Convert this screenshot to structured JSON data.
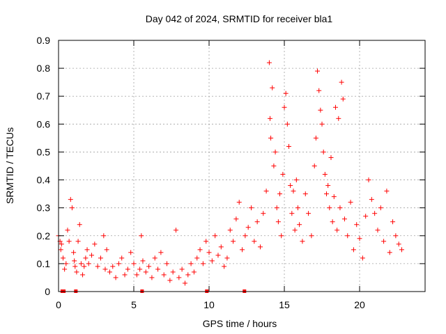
{
  "chart_data": {
    "type": "scatter",
    "title": "Day 042 of 2024, SRMTID for receiver bla1",
    "xlabel": "GPS time / hours",
    "ylabel": "SRMTID / TECUs",
    "xlim": [
      0,
      24.35
    ],
    "ylim": [
      0,
      0.9
    ],
    "xticks": [
      0,
      5,
      10,
      15,
      20
    ],
    "xtick_labels": [
      "0",
      "5",
      "10",
      "15",
      "20"
    ],
    "yticks": [
      0,
      0.1,
      0.2,
      0.3,
      0.4,
      0.5,
      0.6,
      0.7,
      0.8,
      0.9
    ],
    "ytick_labels": [
      "0",
      "0.1",
      "0.2",
      "0.3",
      "0.4",
      "0.5",
      "0.6",
      "0.7",
      "0.8",
      "0.9"
    ],
    "grid": true,
    "marker": "plus",
    "color": "#ff0000",
    "series": [
      {
        "name": "bla1",
        "x": [
          0.0,
          0.1,
          0.15,
          0.2,
          0.3,
          0.4,
          0.5,
          0.6,
          0.7,
          0.8,
          0.9,
          1.0,
          1.05,
          1.1,
          1.2,
          1.3,
          1.4,
          1.5,
          1.6,
          1.7,
          1.8,
          1.9,
          2.0,
          2.2,
          2.4,
          2.6,
          2.8,
          3.0,
          3.1,
          3.2,
          3.4,
          3.6,
          3.8,
          4.0,
          4.2,
          4.4,
          4.6,
          4.8,
          5.0,
          5.2,
          5.4,
          5.5,
          5.6,
          5.8,
          6.0,
          6.2,
          6.4,
          6.6,
          6.8,
          7.0,
          7.2,
          7.4,
          7.6,
          7.8,
          8.0,
          8.2,
          8.4,
          8.6,
          8.8,
          9.0,
          9.2,
          9.4,
          9.6,
          9.8,
          10.0,
          10.2,
          10.4,
          10.6,
          10.8,
          11.0,
          11.2,
          11.4,
          11.6,
          11.8,
          12.0,
          12.2,
          12.4,
          12.6,
          12.8,
          13.0,
          13.2,
          13.4,
          13.6,
          13.8,
          14.0,
          14.05,
          14.1,
          14.2,
          14.3,
          14.4,
          14.5,
          14.6,
          14.7,
          14.8,
          14.9,
          15.0,
          15.1,
          15.2,
          15.3,
          15.4,
          15.5,
          15.6,
          15.7,
          15.8,
          15.9,
          16.0,
          16.2,
          16.4,
          16.6,
          16.8,
          17.0,
          17.1,
          17.2,
          17.3,
          17.4,
          17.5,
          17.6,
          17.7,
          17.8,
          17.9,
          18.0,
          18.1,
          18.2,
          18.3,
          18.4,
          18.5,
          18.6,
          18.7,
          18.8,
          18.9,
          19.0,
          19.2,
          19.4,
          19.6,
          19.8,
          20.0,
          20.2,
          20.4,
          20.6,
          20.8,
          21.0,
          21.2,
          21.4,
          21.6,
          21.8,
          22.0,
          22.2,
          22.4,
          22.6,
          22.8,
          0.25,
          0.35,
          1.15,
          5.55,
          9.85,
          12.35
        ],
        "y": [
          0.2,
          0.18,
          0.15,
          0.17,
          0.12,
          0.08,
          0.1,
          0.22,
          0.18,
          0.33,
          0.3,
          0.14,
          0.11,
          0.09,
          0.07,
          0.18,
          0.24,
          0.1,
          0.06,
          0.09,
          0.12,
          0.15,
          0.1,
          0.13,
          0.17,
          0.09,
          0.12,
          0.2,
          0.08,
          0.15,
          0.07,
          0.09,
          0.05,
          0.1,
          0.12,
          0.06,
          0.08,
          0.14,
          0.1,
          0.06,
          0.08,
          0.2,
          0.11,
          0.07,
          0.09,
          0.05,
          0.12,
          0.08,
          0.14,
          0.06,
          0.1,
          0.04,
          0.07,
          0.22,
          0.05,
          0.08,
          0.03,
          0.06,
          0.1,
          0.07,
          0.12,
          0.15,
          0.1,
          0.18,
          0.14,
          0.11,
          0.2,
          0.13,
          0.16,
          0.09,
          0.12,
          0.22,
          0.18,
          0.26,
          0.32,
          0.15,
          0.2,
          0.23,
          0.3,
          0.18,
          0.25,
          0.16,
          0.28,
          0.36,
          0.82,
          0.62,
          0.55,
          0.73,
          0.45,
          0.5,
          0.3,
          0.25,
          0.35,
          0.2,
          0.42,
          0.66,
          0.71,
          0.6,
          0.52,
          0.38,
          0.28,
          0.36,
          0.22,
          0.4,
          0.3,
          0.24,
          0.18,
          0.35,
          0.28,
          0.2,
          0.45,
          0.55,
          0.79,
          0.72,
          0.65,
          0.6,
          0.5,
          0.42,
          0.35,
          0.38,
          0.3,
          0.48,
          0.25,
          0.34,
          0.66,
          0.22,
          0.62,
          0.3,
          0.75,
          0.69,
          0.26,
          0.2,
          0.32,
          0.15,
          0.24,
          0.19,
          0.12,
          0.27,
          0.4,
          0.33,
          0.28,
          0.22,
          0.3,
          0.18,
          0.36,
          0.14,
          0.25,
          0.2,
          0.17,
          0.15,
          0,
          0,
          0,
          0,
          0,
          0
        ]
      }
    ]
  }
}
